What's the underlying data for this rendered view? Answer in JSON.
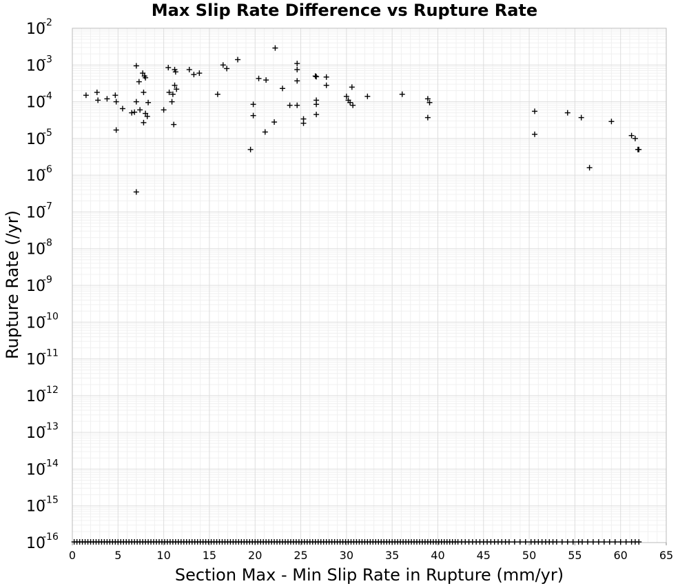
{
  "chart_data": {
    "type": "scatter",
    "title": "Max Slip Rate Difference vs Rupture Rate",
    "xlabel": "Section Max - Min Slip Rate in Rupture (mm/yr)",
    "ylabel": "Rupture Rate (/yr)",
    "xlim": [
      0,
      65
    ],
    "ylim": [
      1e-16,
      0.01
    ],
    "yscale": "log",
    "grid": true,
    "x_ticks": [
      "0",
      "5",
      "10",
      "15",
      "20",
      "25",
      "30",
      "35",
      "40",
      "45",
      "50",
      "55",
      "60",
      "65"
    ],
    "y_ticks": [
      {
        "base": "10",
        "exp": "-2"
      },
      {
        "base": "10",
        "exp": "-3"
      },
      {
        "base": "10",
        "exp": "-4"
      },
      {
        "base": "10",
        "exp": "-5"
      },
      {
        "base": "10",
        "exp": "-6"
      },
      {
        "base": "10",
        "exp": "-7"
      },
      {
        "base": "10",
        "exp": "-8"
      },
      {
        "base": "10",
        "exp": "-9"
      },
      {
        "base": "10",
        "exp": "-10"
      },
      {
        "base": "10",
        "exp": "-11"
      },
      {
        "base": "10",
        "exp": "-12"
      },
      {
        "base": "10",
        "exp": "-13"
      },
      {
        "base": "10",
        "exp": "-14"
      },
      {
        "base": "10",
        "exp": "-15"
      },
      {
        "base": "10",
        "exp": "-16"
      }
    ],
    "series": [
      {
        "marker": "+",
        "color": "#000000",
        "points": [
          [
            1.5,
            0.00015
          ],
          [
            2.7,
            0.00018
          ],
          [
            2.8,
            0.00011
          ],
          [
            3.8,
            0.00012
          ],
          [
            4.7,
            0.00015
          ],
          [
            4.8,
            0.0001
          ],
          [
            4.8,
            1.7e-05
          ],
          [
            5.5,
            6.5e-05
          ],
          [
            6.5,
            5e-05
          ],
          [
            6.8,
            5.2e-05
          ],
          [
            7.0,
            0.0001
          ],
          [
            7.0,
            0.00095
          ],
          [
            7.0,
            3.5e-07
          ],
          [
            7.3,
            0.00035
          ],
          [
            7.4,
            6e-05
          ],
          [
            7.7,
            0.0006
          ],
          [
            7.8,
            0.00018
          ],
          [
            7.9,
            0.0005
          ],
          [
            8.0,
            0.00045
          ],
          [
            7.8,
            2.7e-05
          ],
          [
            8.0,
            4.8e-05
          ],
          [
            8.2,
            4e-05
          ],
          [
            8.3,
            9.5e-05
          ],
          [
            10.0,
            6e-05
          ],
          [
            10.5,
            0.00085
          ],
          [
            10.6,
            0.00018
          ],
          [
            10.9,
            0.0001
          ],
          [
            11.0,
            0.00016
          ],
          [
            11.1,
            2.4e-05
          ],
          [
            11.2,
            0.00075
          ],
          [
            11.3,
            0.00065
          ],
          [
            11.2,
            0.00028
          ],
          [
            11.4,
            0.00022
          ],
          [
            12.8,
            0.00075
          ],
          [
            13.3,
            0.00055
          ],
          [
            13.9,
            0.0006
          ],
          [
            15.9,
            0.00016
          ],
          [
            16.5,
            0.001
          ],
          [
            16.9,
            0.0008
          ],
          [
            18.1,
            0.0014
          ],
          [
            19.5,
            5e-06
          ],
          [
            19.8,
            8.5e-05
          ],
          [
            19.8,
            4.2e-05
          ],
          [
            20.4,
            0.00043
          ],
          [
            21.1,
            1.5e-05
          ],
          [
            21.2,
            0.00039
          ],
          [
            22.1,
            2.8e-05
          ],
          [
            22.2,
            0.0029
          ],
          [
            23.0,
            0.00023
          ],
          [
            23.8,
            8e-05
          ],
          [
            24.6,
            0.0011
          ],
          [
            24.6,
            0.00075
          ],
          [
            24.6,
            0.00037
          ],
          [
            24.6,
            8e-05
          ],
          [
            25.3,
            3.4e-05
          ],
          [
            25.3,
            2.6e-05
          ],
          [
            26.6,
            0.0005
          ],
          [
            26.7,
            0.00048
          ],
          [
            26.7,
            0.00011
          ],
          [
            26.7,
            8.5e-05
          ],
          [
            26.7,
            4.5e-05
          ],
          [
            27.8,
            0.00047
          ],
          [
            27.8,
            0.00028
          ],
          [
            30.0,
            0.00014
          ],
          [
            30.2,
            0.00011
          ],
          [
            30.4,
            9.5e-05
          ],
          [
            30.6,
            0.00025
          ],
          [
            30.7,
            8e-05
          ],
          [
            32.3,
            0.00014
          ],
          [
            36.1,
            0.00016
          ],
          [
            38.9,
            0.00012
          ],
          [
            39.1,
            9.5e-05
          ],
          [
            38.9,
            3.7e-05
          ],
          [
            50.6,
            5.5e-05
          ],
          [
            50.6,
            1.3e-05
          ],
          [
            54.2,
            5e-05
          ],
          [
            55.7,
            3.7e-05
          ],
          [
            56.6,
            1.6e-06
          ],
          [
            59.0,
            2.9e-05
          ],
          [
            61.2,
            1.2e-05
          ],
          [
            61.6,
            1e-05
          ],
          [
            61.9,
            5e-06
          ],
          [
            62.0,
            5e-06
          ]
        ]
      },
      {
        "marker": "+",
        "color": "#000000",
        "baseline_y": 1e-16,
        "x_values": [
          0.2,
          0.5,
          0.8,
          1.1,
          1.4,
          1.7,
          2.0,
          2.3,
          2.6,
          2.9,
          3.2,
          3.5,
          3.8,
          4.1,
          4.4,
          4.7,
          5.0,
          5.3,
          5.6,
          5.9,
          6.2,
          6.5,
          6.8,
          7.1,
          7.4,
          7.7,
          8.0,
          8.3,
          8.6,
          8.9,
          9.2,
          9.5,
          9.8,
          10.1,
          10.4,
          10.7,
          11.0,
          11.3,
          11.6,
          11.9,
          12.2,
          12.5,
          12.8,
          13.1,
          13.4,
          13.7,
          14.0,
          14.3,
          14.6,
          14.9,
          15.2,
          15.5,
          15.8,
          16.1,
          16.4,
          16.7,
          17.0,
          17.3,
          17.6,
          17.9,
          18.2,
          18.5,
          18.8,
          19.1,
          19.4,
          19.7,
          20.0,
          20.3,
          20.6,
          20.9,
          21.2,
          21.5,
          21.8,
          22.1,
          22.4,
          22.7,
          23.0,
          23.3,
          23.6,
          23.9,
          24.2,
          24.5,
          24.8,
          25.1,
          25.4,
          25.7,
          26.0,
          26.3,
          26.6,
          26.9,
          27.2,
          27.5,
          27.8,
          28.1,
          28.4,
          28.7,
          29.0,
          29.3,
          29.6,
          29.9,
          30.2,
          30.5,
          30.8,
          31.1,
          31.4,
          31.7,
          32.0,
          32.3,
          32.6,
          32.9,
          33.2,
          33.5,
          33.8,
          34.1,
          34.4,
          34.7,
          35.0,
          35.3,
          35.6,
          35.9,
          36.2,
          36.5,
          36.8,
          37.1,
          37.4,
          37.7,
          38.0,
          38.3,
          38.6,
          38.9,
          39.2,
          39.5,
          39.8,
          40.1,
          40.4,
          40.7,
          41.0,
          41.3,
          41.6,
          41.9,
          42.2,
          42.6,
          43.0,
          43.4,
          43.8,
          44.2,
          44.6,
          45.0,
          45.4,
          45.8,
          46.2,
          46.6,
          47.0,
          47.4,
          47.8,
          48.4,
          49.0,
          49.6,
          50.2,
          50.6,
          51.0,
          51.4,
          51.8,
          52.2,
          52.6,
          53.0,
          53.6,
          54.2,
          54.8,
          55.4,
          55.8,
          56.4,
          57.0,
          57.6,
          58.2,
          58.8,
          59.4,
          60.0,
          60.6,
          61.2,
          61.6,
          62.0
        ]
      }
    ]
  }
}
